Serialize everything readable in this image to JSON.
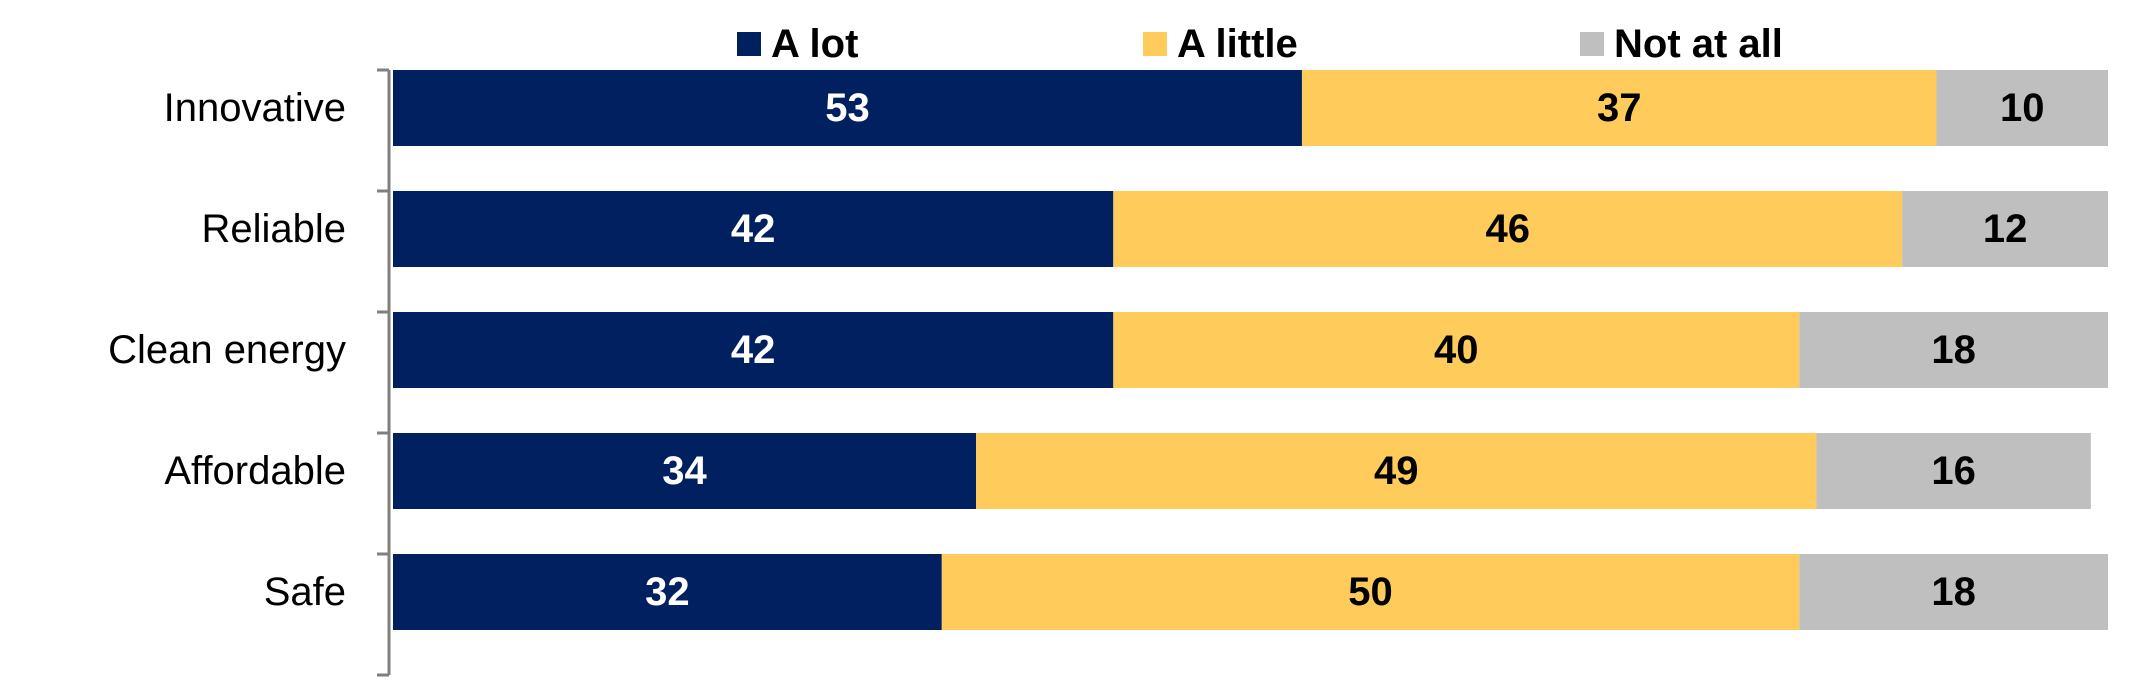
{
  "chart_data": {
    "type": "bar",
    "orientation": "horizontal",
    "stacked": true,
    "title": "",
    "xlabel": "",
    "ylabel": "",
    "xlim": [
      0,
      100
    ],
    "grid": false,
    "legend_position": "top",
    "categories": [
      "Innovative",
      "Reliable",
      "Clean energy",
      "Affordable",
      "Safe"
    ],
    "series": [
      {
        "name": "A lot",
        "color": "#002060",
        "label_color": "#ffffff",
        "values": [
          53,
          42,
          42,
          34,
          32
        ]
      },
      {
        "name": "A little",
        "color": "#FFCC5C",
        "label_color": "#000000",
        "values": [
          37,
          46,
          40,
          49,
          50
        ]
      },
      {
        "name": "Not at all",
        "color": "#BFBFBF",
        "label_color": "#000000",
        "values": [
          10,
          12,
          18,
          16,
          18
        ]
      }
    ]
  }
}
